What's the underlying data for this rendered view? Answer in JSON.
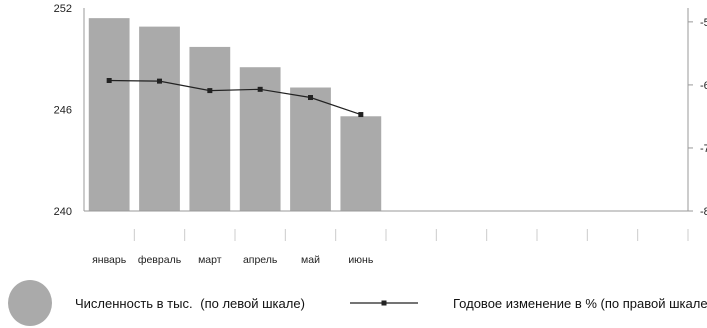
{
  "chart_data": {
    "type": "bar",
    "categories": [
      "январь",
      "февраль",
      "март",
      "апрель",
      "май",
      "июнь",
      "",
      "",
      "",
      "",
      "",
      ""
    ],
    "series": [
      {
        "name": "Численность в тыс.",
        "axis": "left",
        "chart_type": "bar",
        "values": [
          251.4,
          250.9,
          249.7,
          248.5,
          247.3,
          245.6,
          null,
          null,
          null,
          null,
          null,
          null
        ]
      },
      {
        "name": "Годовое изменение в %",
        "axis": "right",
        "chart_type": "line",
        "values": [
          -5.93,
          -5.94,
          -6.09,
          -6.07,
          -6.2,
          -6.47,
          null,
          null,
          null,
          null,
          null,
          null
        ]
      }
    ],
    "y_left": {
      "ticks": [
        "252",
        "246",
        "240"
      ],
      "lim": [
        240,
        252
      ]
    },
    "y_right": {
      "ticks": [
        "-5",
        "-6",
        "-7",
        "-8"
      ],
      "lim": [
        -8,
        -4.78
      ]
    },
    "grid": false,
    "legend_position": "bottom",
    "colors": {
      "bar": "#aaaaaa",
      "line": "#222222",
      "axis": "#999999",
      "legend_swatch": "#aaaaaa"
    }
  },
  "legend": {
    "bar_label_main": "Численность в тыс.",
    "bar_label_note": "(по левой шкале)",
    "line_label": "Годовое изменение в % (по правой шкале)"
  }
}
